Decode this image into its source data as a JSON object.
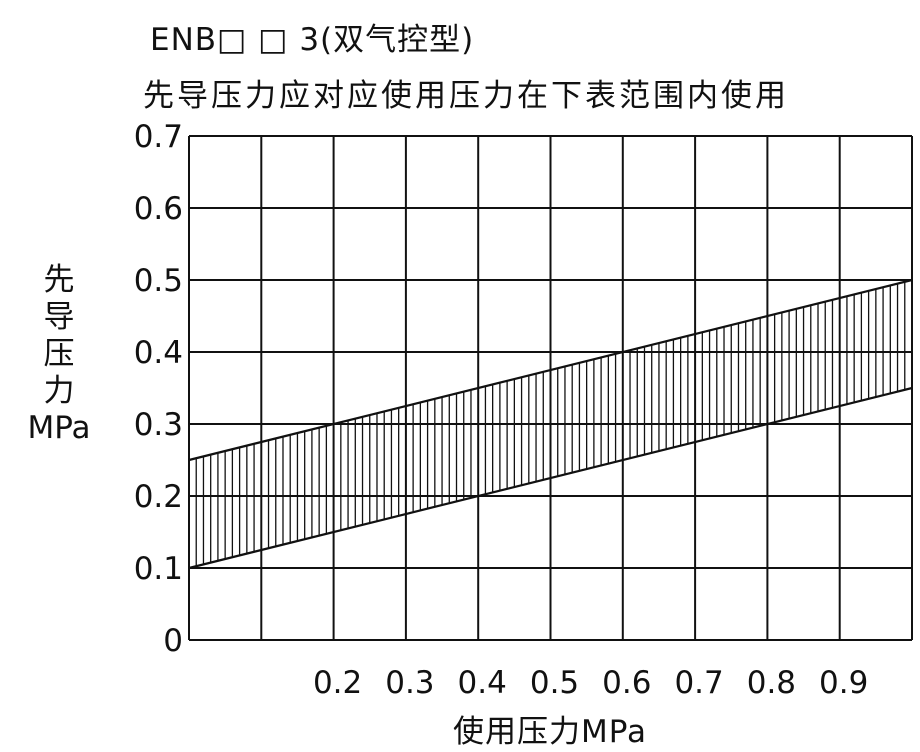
{
  "title": "ENB□ □ 3(双气控型)",
  "subtitle": "先导压力应对应使用压力在下表范围内使用",
  "chart_data": {
    "type": "area",
    "title": "ENB□ □ 3(双气控型)",
    "subtitle": "先导压力应对应使用压力在下表范围内使用",
    "xlabel": "使用压力MPa",
    "ylabel_chars": [
      "先",
      "导",
      "压",
      "力"
    ],
    "ylabel_unit": "MPa",
    "xlim": [
      0,
      1.0
    ],
    "ylim": [
      0,
      0.7
    ],
    "x_tick_labels": [
      "0.2",
      "0.3",
      "0.4",
      "0.5",
      "0.6",
      "0.7",
      "0.8",
      "0.9"
    ],
    "x_tick_values": [
      0.2,
      0.3,
      0.4,
      0.5,
      0.6,
      0.7,
      0.8,
      0.9
    ],
    "y_tick_labels": [
      "0",
      "0.1",
      "0.2",
      "0.3",
      "0.4",
      "0.5",
      "0.6",
      "0.7"
    ],
    "y_tick_values": [
      0,
      0.1,
      0.2,
      0.3,
      0.4,
      0.5,
      0.6,
      0.7
    ],
    "grid": true,
    "series": [
      {
        "x": [
          0,
          1.0
        ],
        "y": [
          0.25,
          0.5
        ]
      },
      {
        "x": [
          0,
          1.0
        ],
        "y": [
          0.1,
          0.35
        ]
      }
    ],
    "fill": "vertical hatch between lines",
    "colors": {
      "line": "#111111",
      "grid": "#111111",
      "background": "#ffffff"
    }
  }
}
